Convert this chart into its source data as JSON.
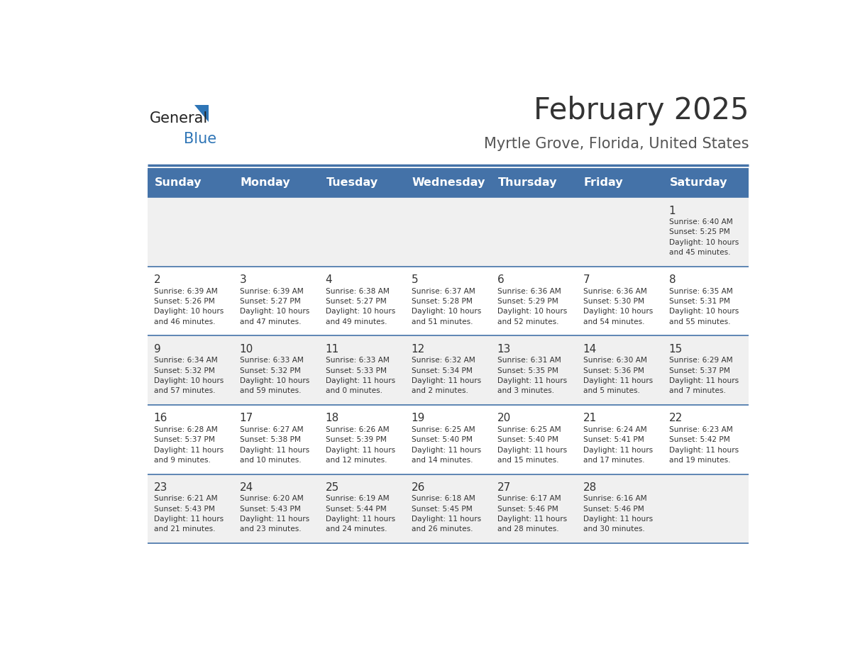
{
  "title": "February 2025",
  "subtitle": "Myrtle Grove, Florida, United States",
  "header_color": "#4472a8",
  "header_text_color": "#ffffff",
  "days_of_week": [
    "Sunday",
    "Monday",
    "Tuesday",
    "Wednesday",
    "Thursday",
    "Friday",
    "Saturday"
  ],
  "row_bg_colors": [
    "#f0f0f0",
    "#ffffff"
  ],
  "day_num_color": "#333333",
  "info_text_color": "#333333",
  "title_color": "#333333",
  "subtitle_color": "#555555",
  "divider_color": "#4472a8",
  "logo_general_color": "#222222",
  "logo_blue_color": "#2e75b6",
  "calendar_data": [
    [
      {
        "day": null,
        "info": null
      },
      {
        "day": null,
        "info": null
      },
      {
        "day": null,
        "info": null
      },
      {
        "day": null,
        "info": null
      },
      {
        "day": null,
        "info": null
      },
      {
        "day": null,
        "info": null
      },
      {
        "day": 1,
        "info": "Sunrise: 6:40 AM\nSunset: 5:25 PM\nDaylight: 10 hours\nand 45 minutes."
      }
    ],
    [
      {
        "day": 2,
        "info": "Sunrise: 6:39 AM\nSunset: 5:26 PM\nDaylight: 10 hours\nand 46 minutes."
      },
      {
        "day": 3,
        "info": "Sunrise: 6:39 AM\nSunset: 5:27 PM\nDaylight: 10 hours\nand 47 minutes."
      },
      {
        "day": 4,
        "info": "Sunrise: 6:38 AM\nSunset: 5:27 PM\nDaylight: 10 hours\nand 49 minutes."
      },
      {
        "day": 5,
        "info": "Sunrise: 6:37 AM\nSunset: 5:28 PM\nDaylight: 10 hours\nand 51 minutes."
      },
      {
        "day": 6,
        "info": "Sunrise: 6:36 AM\nSunset: 5:29 PM\nDaylight: 10 hours\nand 52 minutes."
      },
      {
        "day": 7,
        "info": "Sunrise: 6:36 AM\nSunset: 5:30 PM\nDaylight: 10 hours\nand 54 minutes."
      },
      {
        "day": 8,
        "info": "Sunrise: 6:35 AM\nSunset: 5:31 PM\nDaylight: 10 hours\nand 55 minutes."
      }
    ],
    [
      {
        "day": 9,
        "info": "Sunrise: 6:34 AM\nSunset: 5:32 PM\nDaylight: 10 hours\nand 57 minutes."
      },
      {
        "day": 10,
        "info": "Sunrise: 6:33 AM\nSunset: 5:32 PM\nDaylight: 10 hours\nand 59 minutes."
      },
      {
        "day": 11,
        "info": "Sunrise: 6:33 AM\nSunset: 5:33 PM\nDaylight: 11 hours\nand 0 minutes."
      },
      {
        "day": 12,
        "info": "Sunrise: 6:32 AM\nSunset: 5:34 PM\nDaylight: 11 hours\nand 2 minutes."
      },
      {
        "day": 13,
        "info": "Sunrise: 6:31 AM\nSunset: 5:35 PM\nDaylight: 11 hours\nand 3 minutes."
      },
      {
        "day": 14,
        "info": "Sunrise: 6:30 AM\nSunset: 5:36 PM\nDaylight: 11 hours\nand 5 minutes."
      },
      {
        "day": 15,
        "info": "Sunrise: 6:29 AM\nSunset: 5:37 PM\nDaylight: 11 hours\nand 7 minutes."
      }
    ],
    [
      {
        "day": 16,
        "info": "Sunrise: 6:28 AM\nSunset: 5:37 PM\nDaylight: 11 hours\nand 9 minutes."
      },
      {
        "day": 17,
        "info": "Sunrise: 6:27 AM\nSunset: 5:38 PM\nDaylight: 11 hours\nand 10 minutes."
      },
      {
        "day": 18,
        "info": "Sunrise: 6:26 AM\nSunset: 5:39 PM\nDaylight: 11 hours\nand 12 minutes."
      },
      {
        "day": 19,
        "info": "Sunrise: 6:25 AM\nSunset: 5:40 PM\nDaylight: 11 hours\nand 14 minutes."
      },
      {
        "day": 20,
        "info": "Sunrise: 6:25 AM\nSunset: 5:40 PM\nDaylight: 11 hours\nand 15 minutes."
      },
      {
        "day": 21,
        "info": "Sunrise: 6:24 AM\nSunset: 5:41 PM\nDaylight: 11 hours\nand 17 minutes."
      },
      {
        "day": 22,
        "info": "Sunrise: 6:23 AM\nSunset: 5:42 PM\nDaylight: 11 hours\nand 19 minutes."
      }
    ],
    [
      {
        "day": 23,
        "info": "Sunrise: 6:21 AM\nSunset: 5:43 PM\nDaylight: 11 hours\nand 21 minutes."
      },
      {
        "day": 24,
        "info": "Sunrise: 6:20 AM\nSunset: 5:43 PM\nDaylight: 11 hours\nand 23 minutes."
      },
      {
        "day": 25,
        "info": "Sunrise: 6:19 AM\nSunset: 5:44 PM\nDaylight: 11 hours\nand 24 minutes."
      },
      {
        "day": 26,
        "info": "Sunrise: 6:18 AM\nSunset: 5:45 PM\nDaylight: 11 hours\nand 26 minutes."
      },
      {
        "day": 27,
        "info": "Sunrise: 6:17 AM\nSunset: 5:46 PM\nDaylight: 11 hours\nand 28 minutes."
      },
      {
        "day": 28,
        "info": "Sunrise: 6:16 AM\nSunset: 5:46 PM\nDaylight: 11 hours\nand 30 minutes."
      },
      {
        "day": null,
        "info": null
      }
    ]
  ]
}
